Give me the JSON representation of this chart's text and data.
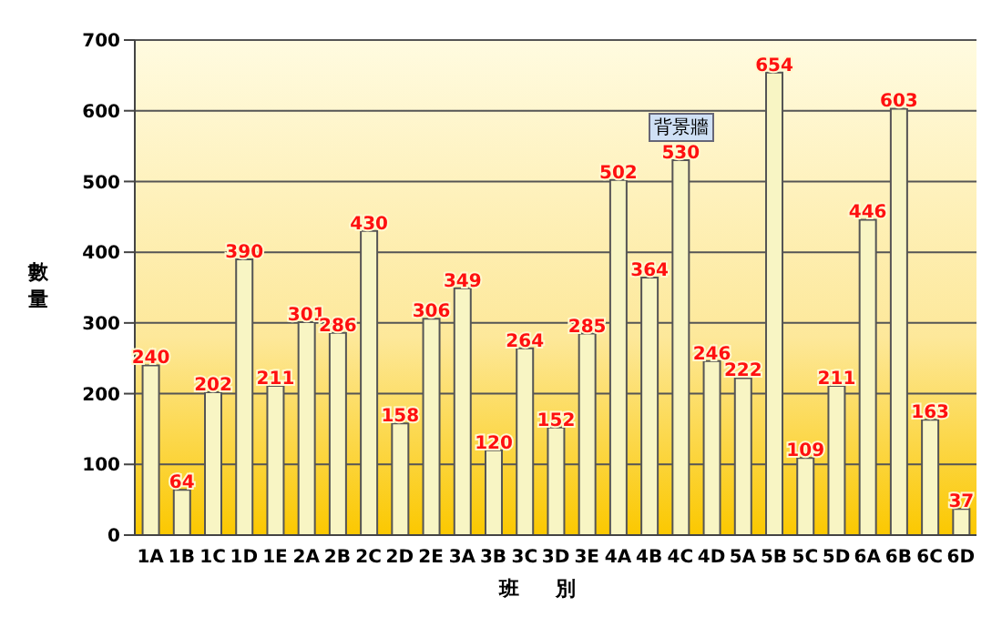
{
  "chart_data": {
    "type": "bar",
    "xlabel": "班別",
    "ylabel": "數量",
    "annotations": [
      "背景牆"
    ],
    "categories": [
      "1A",
      "1B",
      "1C",
      "1D",
      "1E",
      "2A",
      "2B",
      "2C",
      "2D",
      "2E",
      "3A",
      "3B",
      "3C",
      "3D",
      "3E",
      "4A",
      "4B",
      "4C",
      "4D",
      "5A",
      "5B",
      "5C",
      "5D",
      "6A",
      "6B",
      "6C",
      "6D"
    ],
    "values": [
      240,
      64,
      202,
      390,
      211,
      301,
      286,
      430,
      158,
      306,
      349,
      120,
      264,
      152,
      285,
      502,
      364,
      530,
      246,
      222,
      654,
      109,
      211,
      446,
      603,
      163,
      37
    ],
    "color": "#f8f5c4",
    "ylim": [
      0,
      700
    ],
    "yticks": [
      0,
      100,
      200,
      300,
      400,
      500,
      600,
      700
    ],
    "grid": "y",
    "data_labels": true
  }
}
